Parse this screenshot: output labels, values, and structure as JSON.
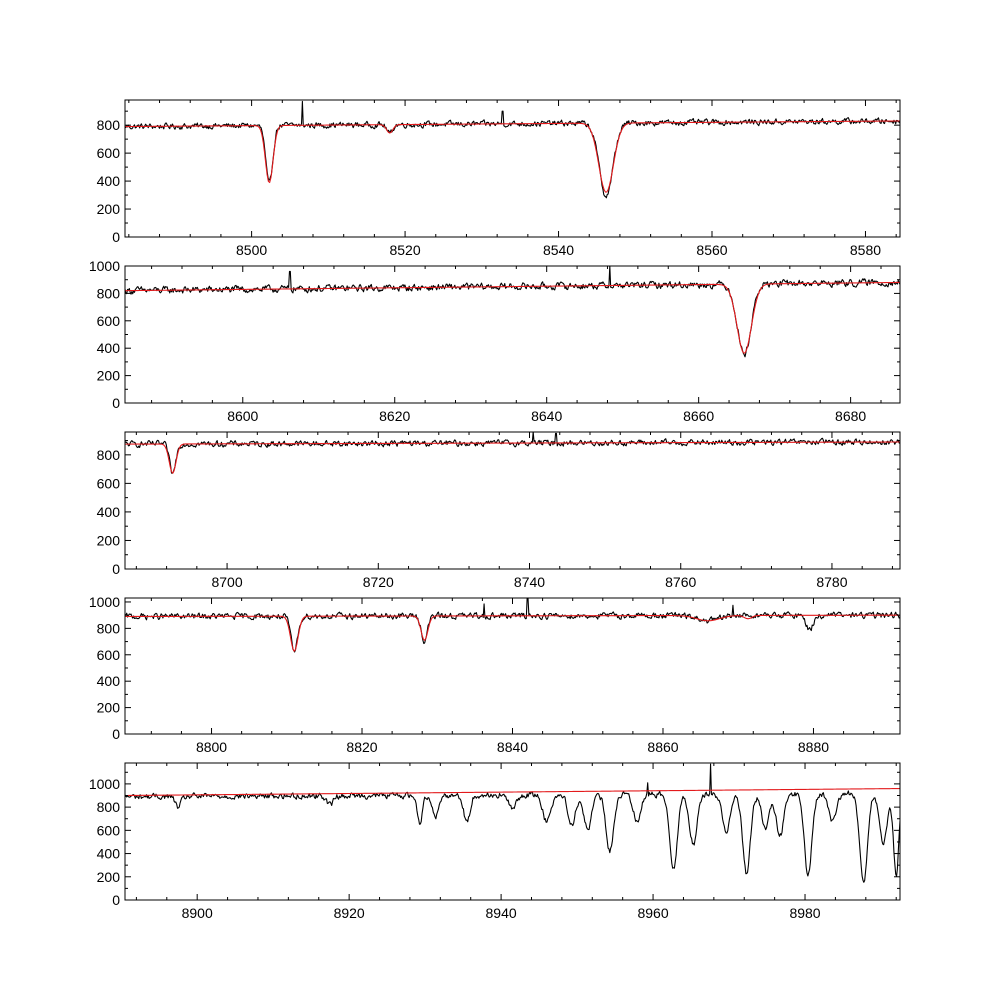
{
  "figure": {
    "title": "",
    "description_none": ""
  },
  "colors": {
    "observed": "#000000",
    "model": "#e31a1c",
    "background": "#ffffff"
  },
  "chart_data": [
    {
      "type": "line",
      "xlim": [
        8483.5,
        8584.5
      ],
      "ylim": [
        0,
        980
      ],
      "xticks": [
        8500,
        8520,
        8540,
        8560,
        8580
      ],
      "yticks": [
        0,
        200,
        400,
        600,
        800
      ],
      "grid": false,
      "series": [
        {
          "role": "observed",
          "color": "#000000",
          "continuum": [
            [
              8483.5,
              790
            ],
            [
              8584.5,
              830
            ]
          ],
          "noise": 18,
          "absorption_lines": [
            {
              "center": 8502.3,
              "depth": 420,
              "width": 0.45
            },
            {
              "center": 8518.0,
              "depth": 65,
              "width": 0.35
            },
            {
              "center": 8546.2,
              "depth": 520,
              "width": 0.9
            }
          ],
          "spikes": [
            {
              "x": 8506.6,
              "y": 970
            },
            {
              "x": 8532.7,
              "y": 900
            }
          ]
        },
        {
          "role": "model",
          "color": "#e31a1c",
          "continuum": [
            [
              8483.5,
              790
            ],
            [
              8584.5,
              830
            ]
          ],
          "absorption_lines": [
            {
              "center": 8502.3,
              "depth": 410,
              "width": 0.5
            },
            {
              "center": 8518.0,
              "depth": 60,
              "width": 0.4
            },
            {
              "center": 8546.2,
              "depth": 495,
              "width": 0.95
            }
          ]
        }
      ]
    },
    {
      "type": "line",
      "xlim": [
        8584.5,
        8686.5
      ],
      "ylim": [
        0,
        1000
      ],
      "xticks": [
        8600,
        8620,
        8640,
        8660,
        8680
      ],
      "yticks": [
        0,
        200,
        400,
        600,
        800,
        1000
      ],
      "grid": false,
      "series": [
        {
          "role": "observed",
          "color": "#000000",
          "continuum": [
            [
              8584.5,
              820
            ],
            [
              8686.5,
              880
            ]
          ],
          "noise": 22,
          "absorption_lines": [
            {
              "center": 8666.0,
              "depth": 510,
              "width": 0.9
            }
          ],
          "spikes": [
            {
              "x": 8606.2,
              "y": 960
            },
            {
              "x": 8648.3,
              "y": 1000
            }
          ]
        },
        {
          "role": "model",
          "color": "#e31a1c",
          "continuum": [
            [
              8584.5,
              820
            ],
            [
              8686.5,
              880
            ]
          ],
          "absorption_lines": [
            {
              "center": 8666.0,
              "depth": 505,
              "width": 0.95
            }
          ]
        }
      ]
    },
    {
      "type": "line",
      "xlim": [
        8686.5,
        8789
      ],
      "ylim": [
        0,
        960
      ],
      "xticks": [
        8700,
        8720,
        8740,
        8760,
        8780
      ],
      "yticks": [
        0,
        200,
        400,
        600,
        800
      ],
      "grid": false,
      "series": [
        {
          "role": "observed",
          "color": "#000000",
          "continuum": [
            [
              8686.5,
              875
            ],
            [
              8789,
              890
            ]
          ],
          "noise": 18,
          "absorption_lines": [
            {
              "center": 8692.8,
              "depth": 210,
              "width": 0.4
            }
          ],
          "spikes": [
            {
              "x": 8740.5,
              "y": 960
            },
            {
              "x": 8743.5,
              "y": 950
            }
          ]
        },
        {
          "role": "model",
          "color": "#e31a1c",
          "continuum": [
            [
              8686.5,
              875
            ],
            [
              8789,
              890
            ]
          ],
          "absorption_lines": [
            {
              "center": 8692.8,
              "depth": 205,
              "width": 0.45
            }
          ]
        }
      ]
    },
    {
      "type": "line",
      "xlim": [
        8788.5,
        8891.5
      ],
      "ylim": [
        0,
        1030
      ],
      "xticks": [
        8800,
        8820,
        8840,
        8860,
        8880
      ],
      "yticks": [
        0,
        200,
        400,
        600,
        800,
        1000
      ],
      "grid": false,
      "series": [
        {
          "role": "observed",
          "color": "#000000",
          "continuum": [
            [
              8788.5,
              890
            ],
            [
              8891.5,
              900
            ]
          ],
          "noise": 20,
          "absorption_lines": [
            {
              "center": 8811.0,
              "depth": 270,
              "width": 0.45
            },
            {
              "center": 8828.3,
              "depth": 190,
              "width": 0.4
            },
            {
              "center": 8866.0,
              "depth": 40,
              "width": 1.5
            },
            {
              "center": 8879.5,
              "depth": 110,
              "width": 0.45
            }
          ],
          "spikes": [
            {
              "x": 8836.2,
              "y": 985
            },
            {
              "x": 8842.0,
              "y": 1030
            },
            {
              "x": 8869.3,
              "y": 975
            }
          ]
        },
        {
          "role": "model",
          "color": "#e31a1c",
          "continuum": [
            [
              8788.5,
              890
            ],
            [
              8891.5,
              900
            ]
          ],
          "absorption_lines": [
            {
              "center": 8811.0,
              "depth": 265,
              "width": 0.5
            },
            {
              "center": 8828.3,
              "depth": 185,
              "width": 0.45
            },
            {
              "center": 8866.0,
              "depth": 40,
              "width": 1.5
            },
            {
              "center": 8871.3,
              "depth": 25,
              "width": 0.5
            }
          ]
        }
      ]
    },
    {
      "type": "line",
      "xlim": [
        8890.5,
        8992.5
      ],
      "ylim": [
        0,
        1180
      ],
      "xticks": [
        8900,
        8920,
        8940,
        8960,
        8980
      ],
      "yticks": [
        0,
        200,
        400,
        600,
        800,
        1000
      ],
      "grid": false,
      "series": [
        {
          "role": "observed",
          "color": "#000000",
          "continuum": [
            [
              8890.5,
              890
            ],
            [
              8992.5,
              920
            ]
          ],
          "noise": 22,
          "absorption_lines": [
            {
              "center": 8897.5,
              "depth": 90,
              "width": 0.4
            },
            {
              "center": 8917.5,
              "depth": 80,
              "width": 0.4
            },
            {
              "center": 8929.3,
              "depth": 230,
              "width": 0.35
            },
            {
              "center": 8931.4,
              "depth": 180,
              "width": 0.4
            },
            {
              "center": 8935.5,
              "depth": 240,
              "width": 0.4
            },
            {
              "center": 8941.5,
              "depth": 120,
              "width": 0.5
            },
            {
              "center": 8946.0,
              "depth": 230,
              "width": 0.5
            },
            {
              "center": 8949.3,
              "depth": 250,
              "width": 0.5
            },
            {
              "center": 8951.4,
              "depth": 300,
              "width": 0.5
            },
            {
              "center": 8954.3,
              "depth": 490,
              "width": 0.5
            },
            {
              "center": 8957.9,
              "depth": 220,
              "width": 0.5
            },
            {
              "center": 8962.7,
              "depth": 630,
              "width": 0.5
            },
            {
              "center": 8965.3,
              "depth": 430,
              "width": 0.5
            },
            {
              "center": 8969.6,
              "depth": 320,
              "width": 0.5
            },
            {
              "center": 8972.3,
              "depth": 690,
              "width": 0.5
            },
            {
              "center": 8974.8,
              "depth": 300,
              "width": 0.5
            },
            {
              "center": 8976.7,
              "depth": 360,
              "width": 0.5
            },
            {
              "center": 8980.4,
              "depth": 700,
              "width": 0.5
            },
            {
              "center": 8983.6,
              "depth": 250,
              "width": 0.5
            },
            {
              "center": 8987.7,
              "depth": 760,
              "width": 0.5
            },
            {
              "center": 8990.3,
              "depth": 450,
              "width": 0.5
            },
            {
              "center": 8992.0,
              "depth": 700,
              "width": 0.35
            }
          ],
          "spikes": [
            {
              "x": 8967.6,
              "y": 1170
            },
            {
              "x": 8959.3,
              "y": 1010
            }
          ]
        },
        {
          "role": "model",
          "color": "#e31a1c",
          "continuum": [
            [
              8890.5,
              900
            ],
            [
              8992.5,
              960
            ]
          ],
          "absorption_lines": []
        }
      ]
    }
  ]
}
